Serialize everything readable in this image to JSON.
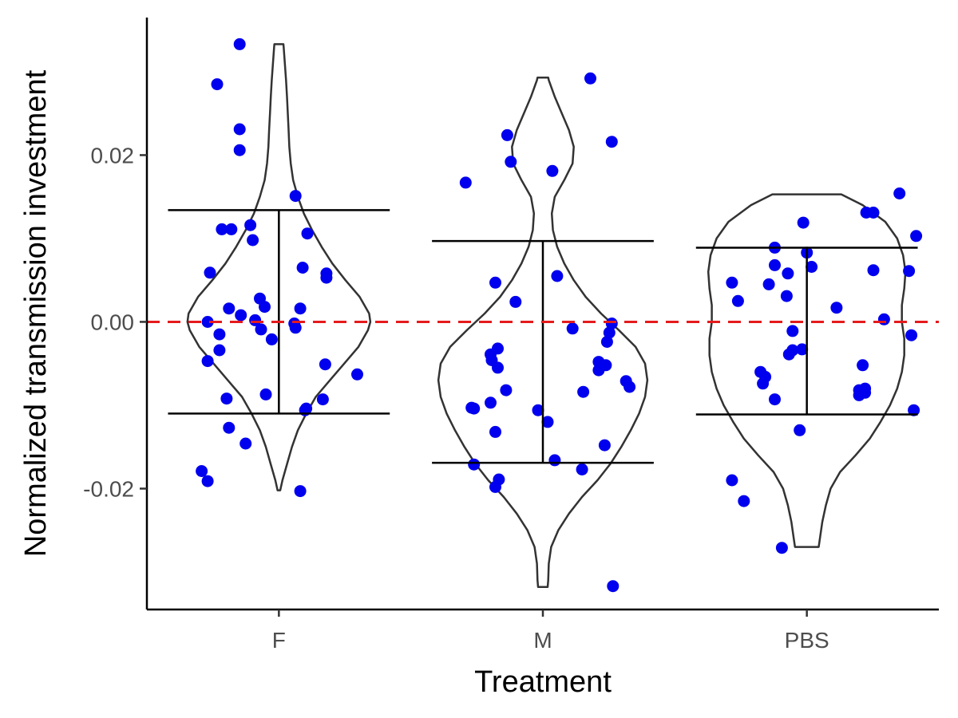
{
  "chart_data": {
    "type": "scatter",
    "subtype": "violin-jitter",
    "title": "",
    "xlabel": "Treatment",
    "ylabel": "Normalized transmission investment",
    "categories": [
      "F",
      "M",
      "PBS"
    ],
    "ylim": [
      -0.0345,
      0.0365
    ],
    "yticks": [
      {
        "value": 0.02,
        "label": "0.02"
      },
      {
        "value": 0.0,
        "label": "0.00"
      },
      {
        "value": -0.02,
        "label": "-0.02"
      }
    ],
    "reference_line": {
      "y": 0.0,
      "color": "#e41a1c",
      "style": "dashed"
    },
    "point_color": "#0000ee",
    "violin_color": "#333333",
    "grid": false,
    "legend": "none",
    "groups": [
      {
        "name": "F",
        "error_bar": {
          "mean": 0.0012,
          "low": -0.011,
          "high": 0.0134
        },
        "violin": [
          [
            -0.0202,
            0.011
          ],
          [
            -0.019,
            0.03
          ],
          [
            -0.017,
            0.07
          ],
          [
            -0.015,
            0.11
          ],
          [
            -0.013,
            0.16
          ],
          [
            -0.011,
            0.23
          ],
          [
            -0.009,
            0.31
          ],
          [
            -0.007,
            0.43
          ],
          [
            -0.005,
            0.55
          ],
          [
            -0.003,
            0.67
          ],
          [
            -0.001,
            0.75
          ],
          [
            0.0,
            0.77
          ],
          [
            0.001,
            0.76
          ],
          [
            0.003,
            0.68
          ],
          [
            0.005,
            0.56
          ],
          [
            0.007,
            0.45
          ],
          [
            0.009,
            0.36
          ],
          [
            0.011,
            0.28
          ],
          [
            0.013,
            0.21
          ],
          [
            0.015,
            0.16
          ],
          [
            0.017,
            0.12
          ],
          [
            0.019,
            0.1
          ],
          [
            0.021,
            0.088
          ],
          [
            0.023,
            0.082
          ],
          [
            0.025,
            0.075
          ],
          [
            0.027,
            0.068
          ],
          [
            0.029,
            0.06
          ],
          [
            0.031,
            0.05
          ],
          [
            0.033,
            0.04
          ],
          [
            0.0333,
            0.038
          ]
        ],
        "points": [
          [
            -0.33,
            0.0333
          ],
          [
            -0.52,
            0.0285
          ],
          [
            -0.33,
            0.0231
          ],
          [
            -0.33,
            0.0206
          ],
          [
            0.14,
            0.0151
          ],
          [
            -0.48,
            0.0111
          ],
          [
            -0.4,
            0.0111
          ],
          [
            -0.24,
            0.0116
          ],
          [
            -0.22,
            0.0098
          ],
          [
            0.24,
            0.0106
          ],
          [
            -0.58,
            0.0059
          ],
          [
            0.2,
            0.0065
          ],
          [
            0.4,
            0.0058
          ],
          [
            0.4,
            0.0053
          ],
          [
            -0.16,
            0.0028
          ],
          [
            -0.42,
            0.0016
          ],
          [
            -0.12,
            0.0018
          ],
          [
            0.18,
            0.0016
          ],
          [
            -0.32,
            0.0008
          ],
          [
            -0.2,
            0.0002
          ],
          [
            -0.6,
            0.0
          ],
          [
            0.13,
            -0.0002
          ],
          [
            -0.15,
            -0.0009
          ],
          [
            -0.5,
            -0.0015
          ],
          [
            0.14,
            -0.0007
          ],
          [
            -0.5,
            -0.0034
          ],
          [
            -0.6,
            -0.0047
          ],
          [
            -0.06,
            -0.0021
          ],
          [
            0.39,
            -0.0051
          ],
          [
            0.66,
            -0.0063
          ],
          [
            -0.11,
            -0.0087
          ],
          [
            -0.44,
            -0.0092
          ],
          [
            0.37,
            -0.0093
          ],
          [
            0.23,
            -0.0104
          ],
          [
            -0.42,
            -0.0127
          ],
          [
            0.22,
            -0.0106
          ],
          [
            -0.28,
            -0.0146
          ],
          [
            -0.65,
            -0.0179
          ],
          [
            -0.6,
            -0.0191
          ],
          [
            0.18,
            -0.0203
          ]
        ]
      },
      {
        "name": "M",
        "error_bar": {
          "mean": -0.0035,
          "low": -0.0169,
          "high": 0.0097
        },
        "violin": [
          [
            -0.0318,
            0.04
          ],
          [
            -0.031,
            0.045
          ],
          [
            -0.029,
            0.05
          ],
          [
            -0.027,
            0.07
          ],
          [
            -0.025,
            0.13
          ],
          [
            -0.023,
            0.22
          ],
          [
            -0.021,
            0.33
          ],
          [
            -0.019,
            0.46
          ],
          [
            -0.017,
            0.57
          ],
          [
            -0.015,
            0.66
          ],
          [
            -0.013,
            0.74
          ],
          [
            -0.011,
            0.81
          ],
          [
            -0.009,
            0.86
          ],
          [
            -0.007,
            0.88
          ],
          [
            -0.005,
            0.86
          ],
          [
            -0.003,
            0.78
          ],
          [
            -0.001,
            0.64
          ],
          [
            0.001,
            0.49
          ],
          [
            0.003,
            0.36
          ],
          [
            0.005,
            0.26
          ],
          [
            0.007,
            0.18
          ],
          [
            0.009,
            0.12
          ],
          [
            0.011,
            0.085
          ],
          [
            0.013,
            0.075
          ],
          [
            0.015,
            0.1
          ],
          [
            0.017,
            0.18
          ],
          [
            0.019,
            0.25
          ],
          [
            0.021,
            0.26
          ],
          [
            0.023,
            0.22
          ],
          [
            0.025,
            0.16
          ],
          [
            0.027,
            0.1
          ],
          [
            0.029,
            0.05
          ],
          [
            0.0293,
            0.045
          ]
        ],
        "points": [
          [
            0.4,
            0.0292
          ],
          [
            -0.3,
            0.0224
          ],
          [
            0.58,
            0.0216
          ],
          [
            -0.27,
            0.0192
          ],
          [
            0.08,
            0.0181
          ],
          [
            -0.65,
            0.0167
          ],
          [
            0.12,
            0.0055
          ],
          [
            -0.4,
            0.0047
          ],
          [
            -0.23,
            0.0024
          ],
          [
            0.25,
            -0.0008
          ],
          [
            0.58,
            -0.0002
          ],
          [
            0.56,
            -0.0013
          ],
          [
            0.54,
            -0.0024
          ],
          [
            -0.38,
            -0.0032
          ],
          [
            -0.44,
            -0.0039
          ],
          [
            -0.43,
            -0.0046
          ],
          [
            0.47,
            -0.0048
          ],
          [
            -0.38,
            -0.0055
          ],
          [
            0.53,
            -0.0052
          ],
          [
            0.47,
            -0.0058
          ],
          [
            0.7,
            -0.0071
          ],
          [
            0.73,
            -0.0078
          ],
          [
            -0.31,
            -0.0082
          ],
          [
            0.34,
            -0.0084
          ],
          [
            -0.44,
            -0.0097
          ],
          [
            -0.6,
            -0.0103
          ],
          [
            -0.58,
            -0.0104
          ],
          [
            -0.04,
            -0.0106
          ],
          [
            0.04,
            -0.012
          ],
          [
            -0.4,
            -0.0132
          ],
          [
            0.52,
            -0.0148
          ],
          [
            0.1,
            -0.0166
          ],
          [
            -0.58,
            -0.0171
          ],
          [
            0.33,
            -0.0177
          ],
          [
            -0.37,
            -0.0189
          ],
          [
            -0.4,
            -0.0198
          ],
          [
            0.59,
            -0.0317
          ]
        ]
      },
      {
        "name": "PBS",
        "error_bar": {
          "mean": -0.0012,
          "low": -0.0111,
          "high": 0.0089
        },
        "violin": [
          [
            -0.027,
            0.1
          ],
          [
            -0.026,
            0.11
          ],
          [
            -0.024,
            0.13
          ],
          [
            -0.022,
            0.16
          ],
          [
            -0.02,
            0.2
          ],
          [
            -0.018,
            0.28
          ],
          [
            -0.016,
            0.41
          ],
          [
            -0.014,
            0.53
          ],
          [
            -0.012,
            0.62
          ],
          [
            -0.01,
            0.7
          ],
          [
            -0.008,
            0.76
          ],
          [
            -0.006,
            0.8
          ],
          [
            -0.004,
            0.82
          ],
          [
            -0.002,
            0.82
          ],
          [
            0.0,
            0.8
          ],
          [
            0.002,
            0.8
          ],
          [
            0.004,
            0.82
          ],
          [
            0.006,
            0.83
          ],
          [
            0.008,
            0.81
          ],
          [
            0.01,
            0.76
          ],
          [
            0.012,
            0.66
          ],
          [
            0.014,
            0.47
          ],
          [
            0.0153,
            0.29
          ]
        ],
        "points": [
          [
            -0.63,
            0.0047
          ],
          [
            -0.58,
            0.0025
          ],
          [
            -0.27,
            0.0089
          ],
          [
            -0.27,
            0.0068
          ],
          [
            -0.32,
            0.0045
          ],
          [
            -0.16,
            0.0058
          ],
          [
            -0.17,
            0.0031
          ],
          [
            -0.12,
            -0.0011
          ],
          [
            -0.15,
            -0.0039
          ],
          [
            -0.12,
            -0.0034
          ],
          [
            -0.03,
            0.0119
          ],
          [
            0.0,
            0.0083
          ],
          [
            0.04,
            0.0066
          ],
          [
            -0.04,
            -0.0033
          ],
          [
            0.25,
            0.0017
          ],
          [
            0.5,
            0.0131
          ],
          [
            0.56,
            0.0131
          ],
          [
            0.78,
            0.0154
          ],
          [
            0.92,
            0.0103
          ],
          [
            0.56,
            0.0062
          ],
          [
            0.86,
            0.0061
          ],
          [
            0.65,
            0.0003
          ],
          [
            0.88,
            -0.0016
          ],
          [
            0.47,
            -0.0052
          ],
          [
            0.49,
            -0.008
          ],
          [
            0.44,
            -0.0082
          ],
          [
            0.49,
            -0.0085
          ],
          [
            0.44,
            -0.0088
          ],
          [
            -0.39,
            -0.006
          ],
          [
            -0.35,
            -0.0066
          ],
          [
            -0.37,
            -0.0074
          ],
          [
            -0.27,
            -0.0093
          ],
          [
            -0.06,
            -0.013
          ],
          [
            0.9,
            -0.0106
          ],
          [
            -0.63,
            -0.019
          ],
          [
            -0.53,
            -0.0215
          ],
          [
            -0.21,
            -0.0271
          ]
        ]
      }
    ]
  }
}
